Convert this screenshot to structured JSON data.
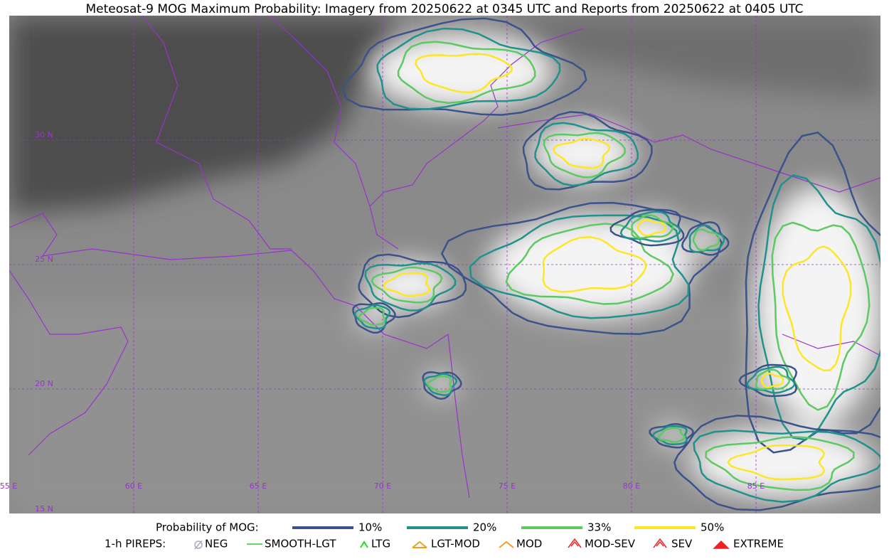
{
  "header": {
    "title": "Meteosat-9 MOG Maximum Probability: Imagery from 20250622 at 0345 UTC and Reports from 20250622 at 0405 UTC"
  },
  "map": {
    "lon_labels": [
      "55 E",
      "60 E",
      "65 E",
      "70 E",
      "75 E",
      "80 E",
      "85 E"
    ],
    "lat_labels": [
      "30 N",
      "25 N",
      "20 N",
      "15 N"
    ]
  },
  "legend": {
    "probability": {
      "label": "Probability of MOG:",
      "items": [
        "10%",
        "20%",
        "33%",
        "50%"
      ]
    },
    "pireps": {
      "label": "1-h PIREPS:",
      "items": [
        "NEG",
        "SMOOTH-LGT",
        "LTG",
        "LGT-MOD",
        "MOD",
        "MOD-SEV",
        "SEV",
        "EXTREME"
      ]
    }
  }
}
